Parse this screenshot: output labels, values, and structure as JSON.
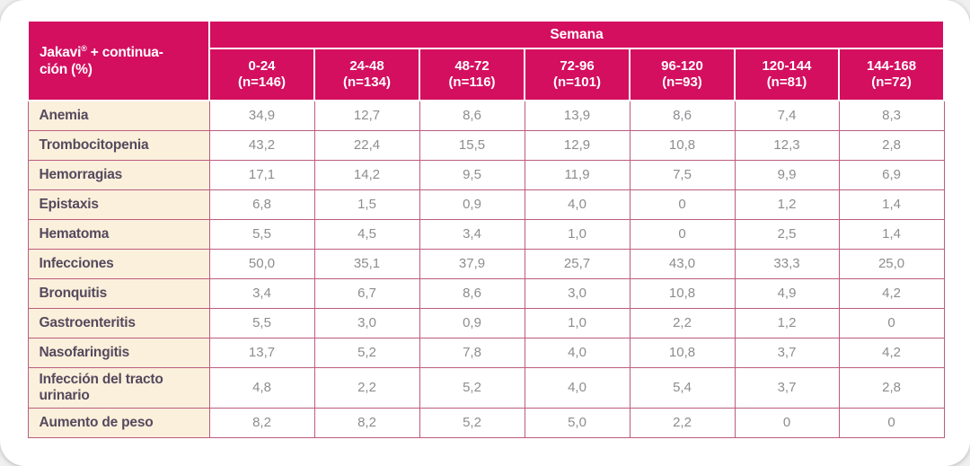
{
  "chart_data": {
    "type": "table",
    "corner_header": "Jakavi® + continuación (%)",
    "group_header": "Semana",
    "columns": [
      {
        "range": "0-24",
        "n": "(n=146)"
      },
      {
        "range": "24-48",
        "n": "(n=134)"
      },
      {
        "range": "48-72",
        "n": "(n=116)"
      },
      {
        "range": "72-96",
        "n": "(n=101)"
      },
      {
        "range": "96-120",
        "n": "(n=93)"
      },
      {
        "range": "120-144",
        "n": "(n=81)"
      },
      {
        "range": "144-168",
        "n": "(n=72)"
      }
    ],
    "rows": [
      {
        "label": "Anemia",
        "values": [
          "34,9",
          "12,7",
          "8,6",
          "13,9",
          "8,6",
          "7,4",
          "8,3"
        ]
      },
      {
        "label": "Trombocitopenia",
        "values": [
          "43,2",
          "22,4",
          "15,5",
          "12,9",
          "10,8",
          "12,3",
          "2,8"
        ]
      },
      {
        "label": "Hemorragias",
        "values": [
          "17,1",
          "14,2",
          "9,5",
          "11,9",
          "7,5",
          "9,9",
          "6,9"
        ]
      },
      {
        "label": "Epistaxis",
        "values": [
          "6,8",
          "1,5",
          "0,9",
          "4,0",
          "0",
          "1,2",
          "1,4"
        ]
      },
      {
        "label": "Hematoma",
        "values": [
          "5,5",
          "4,5",
          "3,4",
          "1,0",
          "0",
          "2,5",
          "1,4"
        ]
      },
      {
        "label": "Infecciones",
        "values": [
          "50,0",
          "35,1",
          "37,9",
          "25,7",
          "43,0",
          "33,3",
          "25,0"
        ]
      },
      {
        "label": "Bronquitis",
        "values": [
          "3,4",
          "6,7",
          "8,6",
          "3,0",
          "10,8",
          "4,9",
          "4,2"
        ]
      },
      {
        "label": "Gastroenteritis",
        "values": [
          "5,5",
          "3,0",
          "0,9",
          "1,0",
          "2,2",
          "1,2",
          "0"
        ]
      },
      {
        "label": "Nasofaringitis",
        "values": [
          "13,7",
          "5,2",
          "7,8",
          "4,0",
          "10,8",
          "3,7",
          "4,2"
        ]
      },
      {
        "label": "Infección del tracto urinario",
        "values": [
          "4,8",
          "2,2",
          "5,2",
          "4,0",
          "5,4",
          "3,7",
          "2,8"
        ]
      },
      {
        "label": "Aumento de peso",
        "values": [
          "8,2",
          "8,2",
          "5,2",
          "5,0",
          "2,2",
          "0",
          "0"
        ]
      }
    ]
  },
  "corner_display": {
    "brand": "Jakavi",
    "sup": "®",
    "line1_rest": " + continua-",
    "line2": "ción (%)"
  },
  "colors": {
    "header_bg": "#d40f60",
    "header_text": "#ffffff",
    "label_bg": "#fbf0db",
    "label_text": "#55495e",
    "value_text": "#8d8d90",
    "grid_border": "#bb5c80",
    "card_bg": "#ffffff",
    "page_bg": "#f0f0f0"
  }
}
